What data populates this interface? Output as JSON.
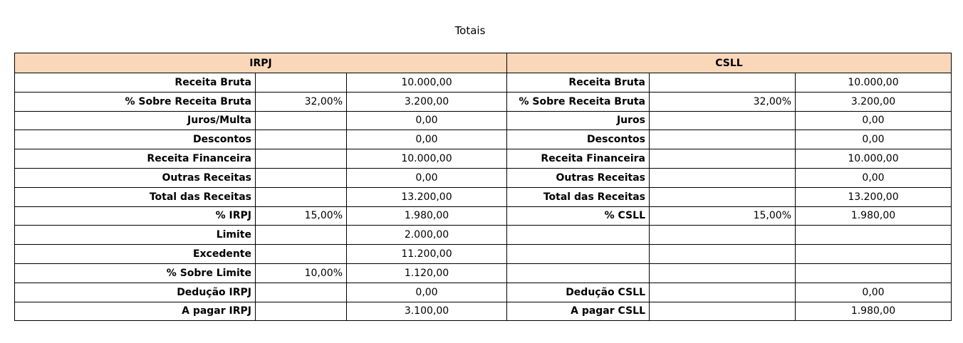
{
  "title": "Totais",
  "table": {
    "header": [
      "IRPJ",
      "CSLL"
    ],
    "rows": [
      [
        "Receita Bruta",
        null,
        "10.000,00",
        "Receita Bruta",
        null,
        "10.000,00"
      ],
      [
        "% Sobre Receita Bruta",
        "32,00%",
        "3.200,00",
        "% Sobre Receita Bruta",
        "32,00%",
        "3.200,00"
      ],
      [
        "Juros/Multa",
        null,
        "0,00",
        "Juros",
        null,
        "0,00"
      ],
      [
        "Descontos",
        null,
        "0,00",
        "Descontos",
        null,
        "0,00"
      ],
      [
        "Receita Financeira",
        null,
        "10.000,00",
        "Receita Financeira",
        null,
        "10.000,00"
      ],
      [
        "Outras Receitas",
        null,
        "0,00",
        "Outras Receitas",
        null,
        "0,00"
      ],
      [
        "Total das Receitas",
        null,
        "13.200,00",
        "Total das Receitas",
        null,
        "13.200,00"
      ],
      [
        "% IRPJ",
        "15,00%",
        "1.980,00",
        "% CSLL",
        "15,00%",
        "1.980,00"
      ],
      [
        "Limite",
        null,
        "2.000,00",
        null,
        null,
        null
      ],
      [
        "Excedente",
        null,
        "11.200,00",
        null,
        null,
        null
      ],
      [
        "% Sobre Limite",
        "10,00%",
        "1.120,00",
        null,
        null,
        null
      ],
      [
        "Dedução IRPJ",
        null,
        "0,00",
        "Dedução CSLL",
        null,
        "0,00"
      ],
      [
        "A pagar IRPJ",
        null,
        "3.100,00",
        "A pagar CSLL",
        null,
        "1.980,00"
      ]
    ]
  }
}
